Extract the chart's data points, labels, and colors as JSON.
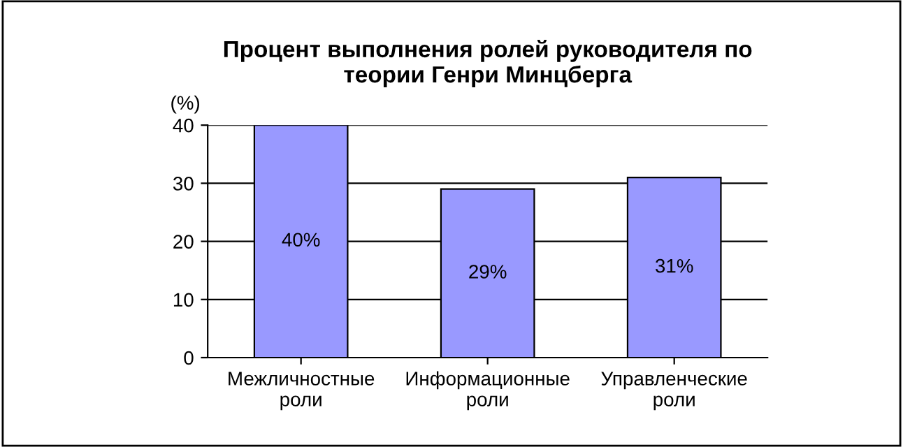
{
  "chart_data": {
    "type": "bar",
    "title": "Процент выполнения ролей руководителя по\nтеории Генри Минцберга",
    "ylabel": "(%)",
    "categories": [
      "Межличностные\nроли",
      "Информационные\nроли",
      "Управленческие\nроли"
    ],
    "values": [
      40,
      29,
      31
    ],
    "color": "#9999ff",
    "value_labels": [
      "40%",
      "29%",
      "31%"
    ],
    "ylim": [
      0,
      40
    ],
    "yticks": [
      0,
      10,
      20,
      30,
      40
    ],
    "grid": "y"
  }
}
